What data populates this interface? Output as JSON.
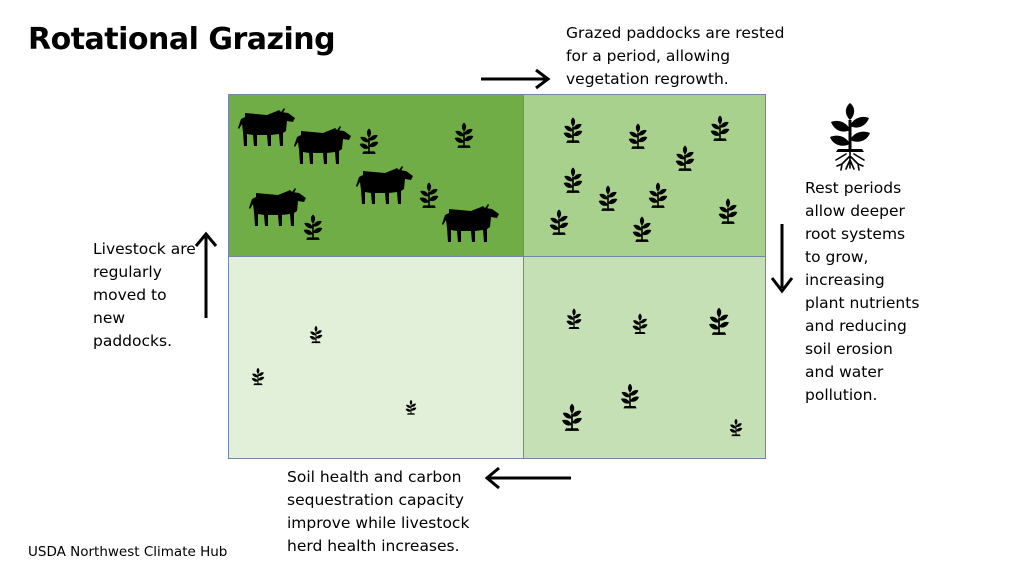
{
  "title": "Rotational Grazing",
  "captions": {
    "top": "Grazed paddocks are rested for a period, allowing vegetation regrowth.",
    "right": "Rest periods allow deeper root systems to grow, increasing plant nutrients and reducing soil erosion and water pollution.",
    "left": "Livestock are regularly moved to new paddocks.",
    "bottom": "Soil health and carbon sequestration capacity improve while livestock herd health increases."
  },
  "credit": "USDA Northwest Climate Hub",
  "paddocks": [
    {
      "id": "grazing",
      "color": "#70ad47"
    },
    {
      "id": "resting-regrowth",
      "color": "#a9d18e"
    },
    {
      "id": "regrowing",
      "color": "#c5e0b4"
    },
    {
      "id": "recently-grazed",
      "color": "#e2f0d9"
    }
  ],
  "icons": {
    "livestock": "cow-icon",
    "vegetation": "plant-icon",
    "roots": "plant-with-roots-icon"
  }
}
